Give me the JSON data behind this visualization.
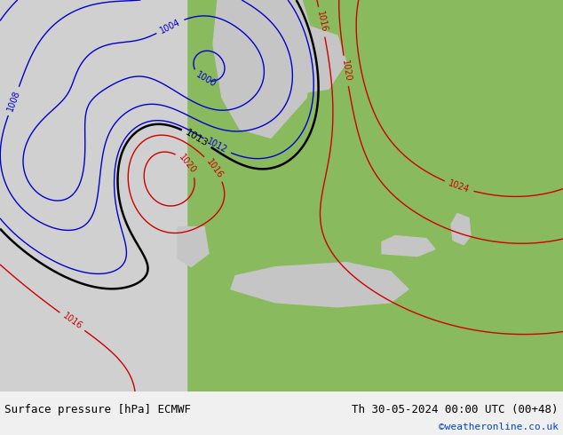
{
  "title_left": "Surface pressure [hPa] ECMWF",
  "title_right": "Th 30-05-2024 00:00 UTC (00+48)",
  "copyright": "©weatheronline.co.uk",
  "bg_ocean": "#d0d0d0",
  "bg_land": "#8aba5e",
  "footer_bg": "#f0f0f0",
  "contour_color_low": "#0000cc",
  "contour_color_high": "#cc0000",
  "contour_color_mid": "#000000",
  "figsize": [
    6.34,
    4.9
  ],
  "dpi": 100
}
